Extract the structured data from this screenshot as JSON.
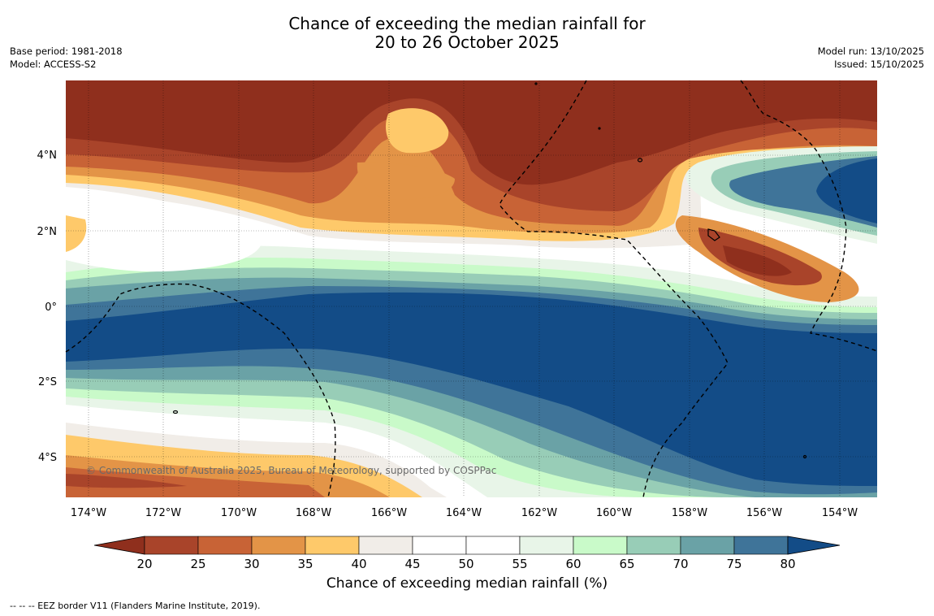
{
  "title": {
    "line1": "Chance of exceeding the median rainfall for",
    "line2": "20 to 26 October 2025"
  },
  "meta": {
    "base_period": "Base period: 1981-2018",
    "model": "Model: ACCESS-S2",
    "model_run": "Model run: 13/10/2025",
    "issued": "Issued: 15/10/2025"
  },
  "map": {
    "lat_labels": [
      "4°N",
      "2°N",
      "0°",
      "2°S",
      "4°S"
    ],
    "lon_labels": [
      "174°W",
      "172°W",
      "170°W",
      "168°W",
      "166°W",
      "164°W",
      "162°W",
      "160°W",
      "158°W",
      "156°W",
      "154°W"
    ],
    "copyright": "© Commonwealth of Australia 2025, Bureau of Meteorology, supported by COSPPac"
  },
  "colorbar": {
    "ticks": [
      "20",
      "25",
      "30",
      "35",
      "40",
      "45",
      "50",
      "55",
      "60",
      "65",
      "70",
      "75",
      "80"
    ],
    "colors": [
      "#8f2f1d",
      "#a9442a",
      "#c86336",
      "#e39447",
      "#fec96a",
      "#f1ede8",
      "#ffffff",
      "#ffffff",
      "#e8f5e8",
      "#c9fac9",
      "#98cdb7",
      "#6aa2a6",
      "#3f7499",
      "#134c87"
    ],
    "label": "Chance of exceeding median rainfall (%)"
  },
  "footer": "--  --  -- EEZ border V11 (Flanders Marine Institute, 2019)."
}
